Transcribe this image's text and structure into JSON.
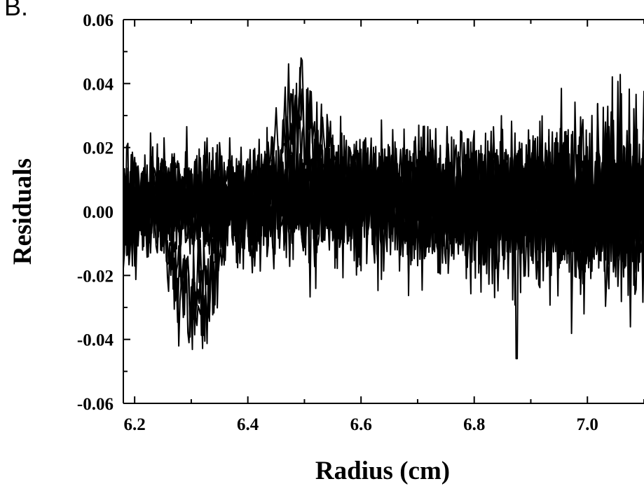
{
  "panel_label": "B.",
  "chart_data": {
    "type": "line",
    "title": "",
    "xlabel": "Radius (cm)",
    "ylabel": "Residuals",
    "xlim": [
      6.18,
      7.1
    ],
    "ylim": [
      -0.06,
      0.06
    ],
    "x_ticks": [
      6.2,
      6.4,
      6.6,
      6.8,
      7.0
    ],
    "x_tick_labels": [
      "6.2",
      "6.4",
      "6.6",
      "6.8",
      "7.0"
    ],
    "y_ticks": [
      -0.06,
      -0.04,
      -0.02,
      0.0,
      0.02,
      0.04,
      0.06
    ],
    "y_tick_labels": [
      "-0.06",
      "-0.04",
      "-0.02",
      "0.00",
      "0.02",
      "0.04",
      "0.06"
    ],
    "grid": false,
    "legend": "none",
    "line_color": "#000000",
    "series_count": 14,
    "noise_envelope": [
      {
        "x": 6.18,
        "lower": -0.015,
        "upper": 0.02
      },
      {
        "x": 6.4,
        "lower": -0.015,
        "upper": 0.02
      },
      {
        "x": 6.6,
        "lower": -0.015,
        "upper": 0.025
      },
      {
        "x": 6.8,
        "lower": -0.02,
        "upper": 0.025
      },
      {
        "x": 7.0,
        "lower": -0.025,
        "upper": 0.03
      },
      {
        "x": 7.1,
        "lower": -0.025,
        "upper": 0.03
      }
    ],
    "features": [
      {
        "x_start": 6.24,
        "x_end": 6.37,
        "min_value": -0.049,
        "description_value": "negative excursion"
      },
      {
        "x_start": 6.42,
        "x_end": 6.56,
        "max_value": 0.044,
        "description_value": "positive excursion"
      },
      {
        "x": 6.875,
        "min_value": -0.046,
        "description_value": "spike"
      }
    ]
  }
}
